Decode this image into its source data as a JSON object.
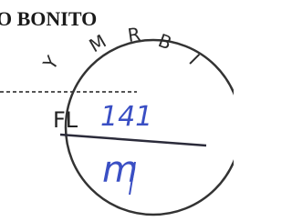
{
  "header": {
    "text": "O BONITO"
  },
  "stamp": {
    "arc_letters": [
      "Y",
      "M",
      "R",
      "B",
      "I"
    ],
    "label": "FL",
    "number": "141",
    "signature": "m"
  }
}
